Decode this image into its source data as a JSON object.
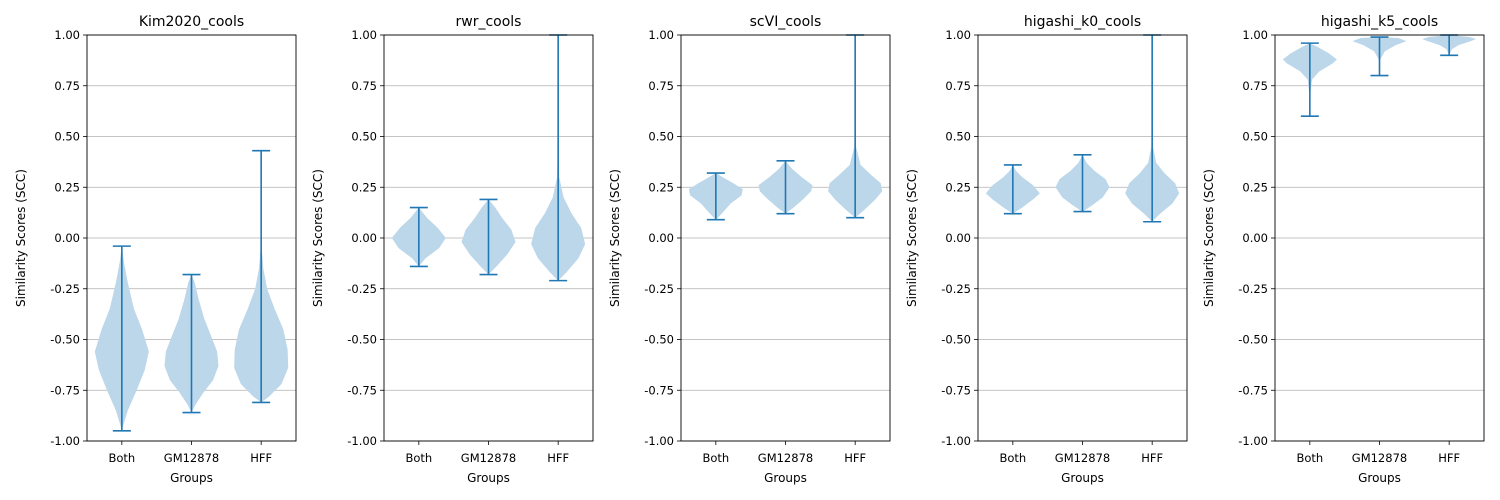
{
  "chart_data": [
    {
      "type": "violin",
      "title": "Kim2020_cools",
      "xlabel": "Groups",
      "ylabel": "Similarity Scores (SCC)",
      "ylim": [
        -1.0,
        1.0
      ],
      "yticks": [
        "-1.00",
        "-0.75",
        "-0.50",
        "-0.25",
        "0.00",
        "0.25",
        "0.50",
        "0.75",
        "1.00"
      ],
      "grid": "y",
      "color": "#1f77b4",
      "fill": "#bcd6ea",
      "categories": [
        "Both",
        "GM12878",
        "HFF"
      ],
      "violins": [
        {
          "min": -0.95,
          "max": -0.04,
          "profile": [
            [
              -0.95,
              0
            ],
            [
              -0.92,
              0.06
            ],
            [
              -0.85,
              0.22
            ],
            [
              -0.75,
              0.55
            ],
            [
              -0.65,
              0.85
            ],
            [
              -0.56,
              1.0
            ],
            [
              -0.45,
              0.75
            ],
            [
              -0.35,
              0.45
            ],
            [
              -0.22,
              0.22
            ],
            [
              -0.12,
              0.08
            ],
            [
              -0.04,
              0
            ]
          ]
        },
        {
          "min": -0.86,
          "max": -0.18,
          "profile": [
            [
              -0.86,
              0
            ],
            [
              -0.82,
              0.15
            ],
            [
              -0.76,
              0.45
            ],
            [
              -0.7,
              0.8
            ],
            [
              -0.63,
              1.0
            ],
            [
              -0.56,
              0.95
            ],
            [
              -0.48,
              0.72
            ],
            [
              -0.4,
              0.48
            ],
            [
              -0.3,
              0.26
            ],
            [
              -0.22,
              0.12
            ],
            [
              -0.18,
              0
            ]
          ]
        },
        {
          "min": -0.81,
          "max": 0.43,
          "profile": [
            [
              -0.81,
              0
            ],
            [
              -0.78,
              0.3
            ],
            [
              -0.72,
              0.75
            ],
            [
              -0.64,
              1.0
            ],
            [
              -0.55,
              0.98
            ],
            [
              -0.45,
              0.82
            ],
            [
              -0.35,
              0.5
            ],
            [
              -0.25,
              0.22
            ],
            [
              -0.15,
              0.08
            ],
            [
              -0.05,
              0.02
            ],
            [
              0.1,
              0.005
            ],
            [
              0.43,
              0
            ]
          ]
        }
      ]
    },
    {
      "type": "violin",
      "title": "rwr_cools",
      "xlabel": "Groups",
      "ylabel": "Similarity Scores (SCC)",
      "ylim": [
        -1.0,
        1.0
      ],
      "yticks": [
        "-1.00",
        "-0.75",
        "-0.50",
        "-0.25",
        "0.00",
        "0.25",
        "0.50",
        "0.75",
        "1.00"
      ],
      "grid": "y",
      "color": "#1f77b4",
      "fill": "#bcd6ea",
      "categories": [
        "Both",
        "GM12878",
        "HFF"
      ],
      "violins": [
        {
          "min": -0.14,
          "max": 0.15,
          "profile": [
            [
              -0.14,
              0
            ],
            [
              -0.1,
              0.25
            ],
            [
              -0.05,
              0.75
            ],
            [
              0.0,
              1.0
            ],
            [
              0.05,
              0.7
            ],
            [
              0.1,
              0.3
            ],
            [
              0.15,
              0
            ]
          ]
        },
        {
          "min": -0.18,
          "max": 0.19,
          "profile": [
            [
              -0.18,
              0
            ],
            [
              -0.14,
              0.3
            ],
            [
              -0.08,
              0.7
            ],
            [
              -0.02,
              1.0
            ],
            [
              0.04,
              0.85
            ],
            [
              0.1,
              0.5
            ],
            [
              0.15,
              0.25
            ],
            [
              0.19,
              0
            ]
          ]
        },
        {
          "min": -0.21,
          "max": 1.0,
          "profile": [
            [
              -0.21,
              0
            ],
            [
              -0.17,
              0.3
            ],
            [
              -0.1,
              0.75
            ],
            [
              -0.03,
              1.0
            ],
            [
              0.05,
              0.85
            ],
            [
              0.12,
              0.5
            ],
            [
              0.2,
              0.2
            ],
            [
              0.3,
              0.04
            ],
            [
              0.5,
              0.01
            ],
            [
              1.0,
              0
            ]
          ]
        }
      ]
    },
    {
      "type": "violin",
      "title": "scVI_cools",
      "xlabel": "Groups",
      "ylabel": "Similarity Scores (SCC)",
      "ylim": [
        -1.0,
        1.0
      ],
      "yticks": [
        "-1.00",
        "-0.75",
        "-0.50",
        "-0.25",
        "0.00",
        "0.25",
        "0.50",
        "0.75",
        "1.00"
      ],
      "grid": "y",
      "color": "#1f77b4",
      "fill": "#bcd6ea",
      "categories": [
        "Both",
        "GM12878",
        "HFF"
      ],
      "violins": [
        {
          "min": 0.09,
          "max": 0.32,
          "profile": [
            [
              0.09,
              0
            ],
            [
              0.12,
              0.22
            ],
            [
              0.17,
              0.55
            ],
            [
              0.21,
              0.95
            ],
            [
              0.24,
              1.0
            ],
            [
              0.27,
              0.65
            ],
            [
              0.3,
              0.25
            ],
            [
              0.32,
              0
            ]
          ]
        },
        {
          "min": 0.12,
          "max": 0.38,
          "profile": [
            [
              0.12,
              0
            ],
            [
              0.15,
              0.3
            ],
            [
              0.19,
              0.65
            ],
            [
              0.23,
              0.95
            ],
            [
              0.26,
              1.0
            ],
            [
              0.3,
              0.6
            ],
            [
              0.34,
              0.25
            ],
            [
              0.38,
              0
            ]
          ]
        },
        {
          "min": 0.1,
          "max": 1.0,
          "profile": [
            [
              0.1,
              0
            ],
            [
              0.14,
              0.35
            ],
            [
              0.19,
              0.75
            ],
            [
              0.23,
              1.0
            ],
            [
              0.27,
              0.95
            ],
            [
              0.31,
              0.6
            ],
            [
              0.36,
              0.2
            ],
            [
              0.45,
              0.03
            ],
            [
              0.7,
              0.005
            ],
            [
              1.0,
              0
            ]
          ]
        }
      ]
    },
    {
      "type": "violin",
      "title": "higashi_k0_cools",
      "xlabel": "Groups",
      "ylabel": "Similarity Scores (SCC)",
      "ylim": [
        -1.0,
        1.0
      ],
      "yticks": [
        "-1.00",
        "-0.75",
        "-0.50",
        "-0.25",
        "0.00",
        "0.25",
        "0.50",
        "0.75",
        "1.00"
      ],
      "grid": "y",
      "color": "#1f77b4",
      "fill": "#bcd6ea",
      "categories": [
        "Both",
        "GM12878",
        "HFF"
      ],
      "violins": [
        {
          "min": 0.12,
          "max": 0.36,
          "profile": [
            [
              0.12,
              0
            ],
            [
              0.15,
              0.35
            ],
            [
              0.19,
              0.75
            ],
            [
              0.22,
              1.0
            ],
            [
              0.26,
              0.75
            ],
            [
              0.3,
              0.35
            ],
            [
              0.33,
              0.12
            ],
            [
              0.36,
              0
            ]
          ]
        },
        {
          "min": 0.13,
          "max": 0.41,
          "profile": [
            [
              0.13,
              0
            ],
            [
              0.16,
              0.35
            ],
            [
              0.2,
              0.75
            ],
            [
              0.25,
              1.0
            ],
            [
              0.29,
              0.85
            ],
            [
              0.33,
              0.45
            ],
            [
              0.37,
              0.15
            ],
            [
              0.41,
              0
            ]
          ]
        },
        {
          "min": 0.08,
          "max": 1.0,
          "profile": [
            [
              0.08,
              0
            ],
            [
              0.12,
              0.3
            ],
            [
              0.17,
              0.75
            ],
            [
              0.22,
              1.0
            ],
            [
              0.27,
              0.85
            ],
            [
              0.32,
              0.45
            ],
            [
              0.37,
              0.15
            ],
            [
              0.45,
              0.03
            ],
            [
              0.7,
              0.005
            ],
            [
              1.0,
              0
            ]
          ]
        }
      ]
    },
    {
      "type": "violin",
      "title": "higashi_k5_cools",
      "xlabel": "Groups",
      "ylabel": "Similarity Scores (SCC)",
      "ylim": [
        -1.0,
        1.0
      ],
      "yticks": [
        "-1.00",
        "-0.75",
        "-0.50",
        "-0.25",
        "0.00",
        "0.25",
        "0.50",
        "0.75",
        "1.00"
      ],
      "grid": "y",
      "color": "#1f77b4",
      "fill": "#bcd6ea",
      "categories": [
        "Both",
        "GM12878",
        "HFF"
      ],
      "violins": [
        {
          "min": 0.6,
          "max": 0.96,
          "profile": [
            [
              0.6,
              0
            ],
            [
              0.7,
              0.01
            ],
            [
              0.78,
              0.08
            ],
            [
              0.82,
              0.35
            ],
            [
              0.86,
              0.85
            ],
            [
              0.88,
              1.0
            ],
            [
              0.91,
              0.7
            ],
            [
              0.94,
              0.3
            ],
            [
              0.96,
              0
            ]
          ]
        },
        {
          "min": 0.8,
          "max": 0.99,
          "profile": [
            [
              0.8,
              0
            ],
            [
              0.88,
              0.03
            ],
            [
              0.92,
              0.2
            ],
            [
              0.95,
              0.6
            ],
            [
              0.97,
              1.0
            ],
            [
              0.985,
              0.7
            ],
            [
              0.99,
              0
            ]
          ]
        },
        {
          "min": 0.9,
          "max": 1.0,
          "profile": [
            [
              0.9,
              0
            ],
            [
              0.93,
              0.1
            ],
            [
              0.95,
              0.35
            ],
            [
              0.97,
              0.8
            ],
            [
              0.98,
              1.0
            ],
            [
              0.99,
              0.75
            ],
            [
              1.0,
              0
            ]
          ]
        }
      ]
    }
  ]
}
